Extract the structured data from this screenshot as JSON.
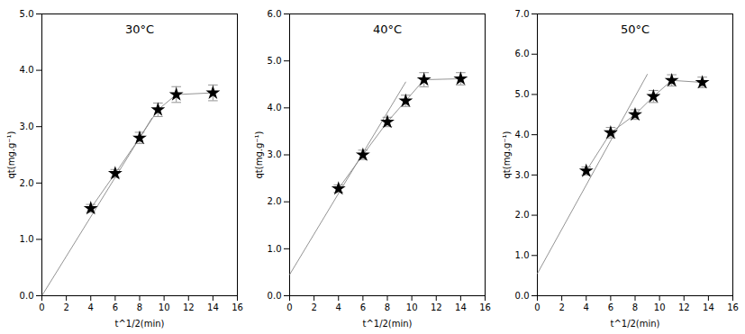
{
  "chart_data": [
    {
      "type": "line",
      "title": "30°C",
      "xlabel": "t^1/2(min)",
      "ylabel": "qt(mg.g⁻¹)",
      "xlim": [
        0,
        16
      ],
      "ylim": [
        0,
        5
      ],
      "xticks": [
        0,
        2,
        4,
        6,
        8,
        10,
        12,
        14,
        16
      ],
      "yticks": [
        0,
        1,
        2,
        3,
        4,
        5
      ],
      "grid": false,
      "series": [
        {
          "type": "line",
          "color": "#888888",
          "x": [
            0,
            9.0
          ],
          "values": [
            0.0,
            3.15
          ]
        },
        {
          "type": "line",
          "color": "#888888",
          "marker": "star",
          "x": [
            4,
            6,
            8,
            9.5,
            11,
            14
          ],
          "values": [
            1.55,
            2.17,
            2.8,
            3.3,
            3.57,
            3.6
          ],
          "y_err": [
            0.07,
            0.07,
            0.1,
            0.12,
            0.14,
            0.14
          ]
        }
      ]
    },
    {
      "type": "line",
      "title": "40°C",
      "xlabel": "t^1/2(min)",
      "ylabel": "qt(mg.g⁻¹)",
      "xlim": [
        0,
        16
      ],
      "ylim": [
        0,
        6
      ],
      "xticks": [
        0,
        2,
        4,
        6,
        8,
        10,
        12,
        14,
        16
      ],
      "yticks": [
        0,
        1,
        2,
        3,
        4,
        5,
        6
      ],
      "grid": false,
      "series": [
        {
          "type": "line",
          "color": "#888888",
          "x": [
            0,
            9.5
          ],
          "values": [
            0.45,
            4.55
          ]
        },
        {
          "type": "line",
          "color": "#888888",
          "marker": "star",
          "x": [
            4,
            6,
            8,
            9.5,
            11,
            14
          ],
          "values": [
            2.28,
            3.0,
            3.7,
            4.15,
            4.6,
            4.62
          ],
          "y_err": [
            0.08,
            0.1,
            0.1,
            0.12,
            0.15,
            0.13
          ]
        }
      ]
    },
    {
      "type": "line",
      "title": "50°C",
      "xlabel": "t^1/2(min)",
      "ylabel": "qt(mg.g⁻¹)",
      "xlim": [
        0,
        16
      ],
      "ylim": [
        0,
        7
      ],
      "xticks": [
        0,
        2,
        4,
        6,
        8,
        10,
        12,
        14,
        16
      ],
      "yticks": [
        0,
        1,
        2,
        3,
        4,
        5,
        6,
        7
      ],
      "grid": false,
      "series": [
        {
          "type": "line",
          "color": "#888888",
          "x": [
            0,
            9.0
          ],
          "values": [
            0.55,
            5.5
          ]
        },
        {
          "type": "line",
          "color": "#888888",
          "marker": "star",
          "x": [
            4,
            6,
            8,
            9.5,
            11,
            13.5
          ],
          "values": [
            3.1,
            4.05,
            4.5,
            4.95,
            5.35,
            5.3
          ],
          "y_err": [
            0.1,
            0.13,
            0.12,
            0.15,
            0.14,
            0.13
          ]
        }
      ]
    }
  ]
}
